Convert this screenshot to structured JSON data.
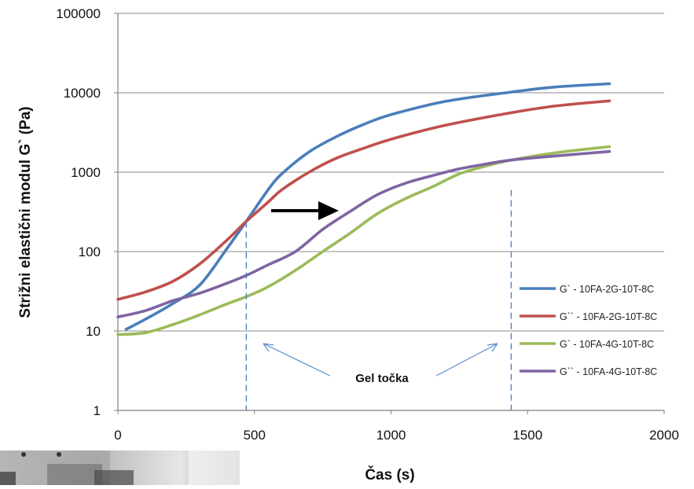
{
  "chart_data": {
    "type": "line",
    "title": "",
    "xlabel": "Čas (s)",
    "ylabel": "Strižni elastični modul G` (Pa)",
    "xlim": [
      0,
      2000
    ],
    "ylim": [
      1,
      100000
    ],
    "yscale": "log",
    "x_ticks": [
      "0",
      "500",
      "1000",
      "1500",
      "2000"
    ],
    "y_ticks": [
      "1",
      "10",
      "100",
      "1000",
      "10000",
      "100000"
    ],
    "grid": "horizontal",
    "legend_position": "right",
    "series": [
      {
        "name": "G` - 10FA-2G-10T-8C",
        "color": "#4a7ebb",
        "x": [
          30,
          100,
          200,
          300,
          400,
          470,
          550,
          600,
          700,
          800,
          900,
          1000,
          1200,
          1440,
          1600,
          1800
        ],
        "y": [
          10.5,
          14,
          22,
          38,
          110,
          240,
          600,
          950,
          1800,
          2800,
          4000,
          5300,
          7800,
          10200,
          11800,
          13000
        ]
      },
      {
        "name": "G`` - 10FA-2G-10T-8C",
        "color": "#c0504d",
        "x": [
          0,
          100,
          200,
          300,
          400,
          470,
          550,
          600,
          700,
          800,
          900,
          1000,
          1200,
          1440,
          1600,
          1800
        ],
        "y": [
          25,
          31,
          42,
          70,
          140,
          240,
          420,
          600,
          1000,
          1500,
          2000,
          2600,
          3900,
          5600,
          6800,
          7900
        ]
      },
      {
        "name": "G` - 10FA-4G-10T-8C",
        "color": "#9bbb59",
        "x": [
          0,
          100,
          200,
          300,
          400,
          470,
          550,
          650,
          750,
          850,
          950,
          1050,
          1150,
          1250,
          1350,
          1440,
          1600,
          1800
        ],
        "y": [
          9,
          9.5,
          12,
          16,
          22,
          27,
          36,
          58,
          100,
          170,
          300,
          460,
          650,
          950,
          1200,
          1420,
          1750,
          2100
        ]
      },
      {
        "name": "G`` - 10FA-4G-10T-8C",
        "color": "#8064a2",
        "x": [
          0,
          100,
          200,
          300,
          400,
          470,
          550,
          650,
          750,
          850,
          950,
          1050,
          1150,
          1250,
          1350,
          1440,
          1600,
          1800
        ],
        "y": [
          15,
          18,
          24,
          30,
          40,
          50,
          68,
          100,
          190,
          320,
          520,
          720,
          900,
          1100,
          1270,
          1420,
          1600,
          1820
        ]
      }
    ],
    "annotations": {
      "gel_point_label": "Gel točka",
      "gel_point_x": [
        470,
        1440
      ]
    }
  }
}
